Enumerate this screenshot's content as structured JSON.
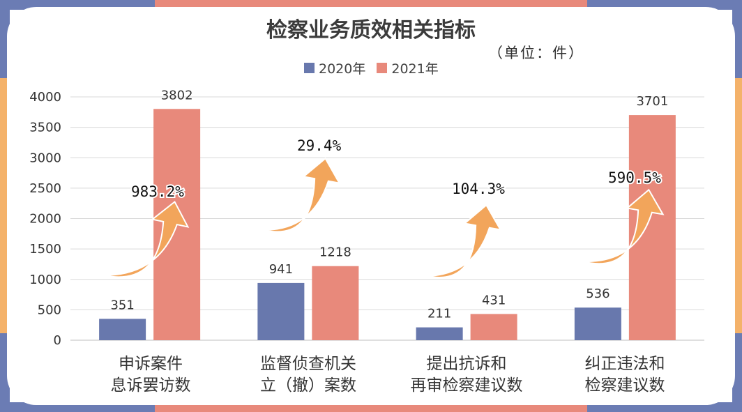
{
  "title": "检察业务质效相关指标",
  "unit": "（单位：件）",
  "colors": {
    "series_2020": "#6878ad",
    "series_2021": "#e8897b",
    "arrow": "#f2a55b",
    "frame_blue": "#6b7cb4",
    "frame_salmon": "#e8897b",
    "frame_orange": "#f4b26a",
    "grid": "#d9d9d9"
  },
  "chart_data": {
    "type": "bar",
    "title": "检察业务质效相关指标",
    "ylim": [
      0,
      4000
    ],
    "yticks": [
      "0",
      "500",
      "1000",
      "1500",
      "2000",
      "2500",
      "3000",
      "3500",
      "4000"
    ],
    "grid": true,
    "legend_position": "top-center",
    "categories": [
      [
        "申诉案件",
        "息诉罢访数"
      ],
      [
        "监督侦查机关",
        "立（撤）案数"
      ],
      [
        "提出抗诉和",
        "再审检察建议数"
      ],
      [
        "纠正违法和",
        "检察建议数"
      ]
    ],
    "series": [
      {
        "name": "2020年",
        "values": [
          351,
          941,
          211,
          536
        ]
      },
      {
        "name": "2021年",
        "values": [
          3802,
          1218,
          431,
          3701
        ]
      }
    ],
    "growth_labels": [
      "983.2%",
      "29.4%",
      "104.3%",
      "590.5%"
    ]
  }
}
